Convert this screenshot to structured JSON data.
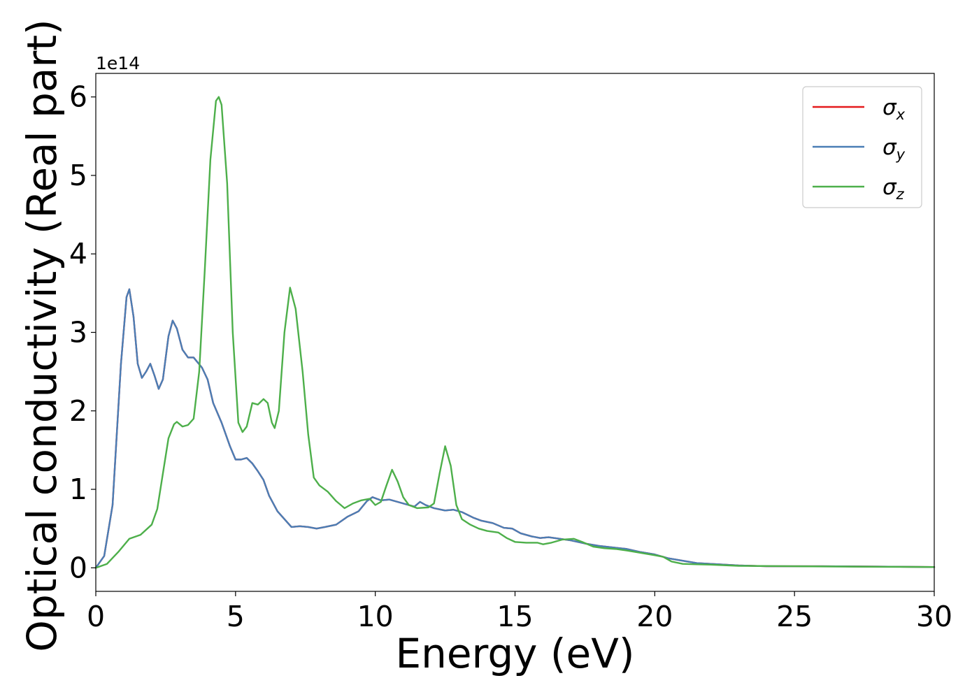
{
  "chart_data": {
    "type": "line",
    "title": "",
    "xlabel": "Energy (eV)",
    "ylabel": "Optical conductivity (Real part)",
    "y_offset_text": "1e14",
    "xlim": [
      0,
      30
    ],
    "ylim": [
      -0.3,
      6.3
    ],
    "x_ticks": [
      0,
      5,
      10,
      15,
      20,
      25,
      30
    ],
    "x_tick_labels": [
      "0",
      "5",
      "10",
      "15",
      "20",
      "25",
      "30"
    ],
    "y_ticks": [
      0,
      1,
      2,
      3,
      4,
      5,
      6
    ],
    "y_tick_labels": [
      "0",
      "1",
      "2",
      "3",
      "4",
      "5",
      "6"
    ],
    "grid": false,
    "legend_position": "top-right",
    "series": [
      {
        "name": "σx",
        "legend_symbol": "σ",
        "legend_subscript": "x",
        "color": "#e41a1c",
        "points": [
          [
            0,
            0
          ],
          [
            0.3,
            0.15
          ],
          [
            0.6,
            0.8
          ],
          [
            0.9,
            2.6
          ],
          [
            1.1,
            3.45
          ],
          [
            1.2,
            3.55
          ],
          [
            1.35,
            3.2
          ],
          [
            1.5,
            2.6
          ],
          [
            1.65,
            2.42
          ],
          [
            1.8,
            2.5
          ],
          [
            1.95,
            2.6
          ],
          [
            2.1,
            2.45
          ],
          [
            2.25,
            2.28
          ],
          [
            2.4,
            2.4
          ],
          [
            2.6,
            2.95
          ],
          [
            2.75,
            3.15
          ],
          [
            2.9,
            3.05
          ],
          [
            3.1,
            2.78
          ],
          [
            3.3,
            2.68
          ],
          [
            3.5,
            2.68
          ],
          [
            3.8,
            2.55
          ],
          [
            4.0,
            2.4
          ],
          [
            4.2,
            2.1
          ],
          [
            4.5,
            1.85
          ],
          [
            4.8,
            1.55
          ],
          [
            5.0,
            1.38
          ],
          [
            5.2,
            1.38
          ],
          [
            5.4,
            1.4
          ],
          [
            5.6,
            1.33
          ],
          [
            5.8,
            1.23
          ],
          [
            6.0,
            1.12
          ],
          [
            6.2,
            0.92
          ],
          [
            6.5,
            0.72
          ],
          [
            6.8,
            0.6
          ],
          [
            7.0,
            0.52
          ],
          [
            7.3,
            0.53
          ],
          [
            7.6,
            0.52
          ],
          [
            7.9,
            0.5
          ],
          [
            8.2,
            0.52
          ],
          [
            8.6,
            0.55
          ],
          [
            9.0,
            0.65
          ],
          [
            9.4,
            0.72
          ],
          [
            9.7,
            0.85
          ],
          [
            9.9,
            0.9
          ],
          [
            10.2,
            0.86
          ],
          [
            10.5,
            0.87
          ],
          [
            10.8,
            0.84
          ],
          [
            11.2,
            0.8
          ],
          [
            11.4,
            0.78
          ],
          [
            11.6,
            0.84
          ],
          [
            11.8,
            0.8
          ],
          [
            12.1,
            0.76
          ],
          [
            12.5,
            0.73
          ],
          [
            12.8,
            0.74
          ],
          [
            13.1,
            0.71
          ],
          [
            13.5,
            0.64
          ],
          [
            13.8,
            0.6
          ],
          [
            14.2,
            0.57
          ],
          [
            14.6,
            0.51
          ],
          [
            14.9,
            0.5
          ],
          [
            15.2,
            0.44
          ],
          [
            15.6,
            0.4
          ],
          [
            15.9,
            0.38
          ],
          [
            16.2,
            0.39
          ],
          [
            16.6,
            0.37
          ],
          [
            17.0,
            0.35
          ],
          [
            17.5,
            0.31
          ],
          [
            18.0,
            0.28
          ],
          [
            18.5,
            0.26
          ],
          [
            19.0,
            0.24
          ],
          [
            19.5,
            0.2
          ],
          [
            20.0,
            0.17
          ],
          [
            20.5,
            0.12
          ],
          [
            21.0,
            0.09
          ],
          [
            21.5,
            0.06
          ],
          [
            22.0,
            0.05
          ],
          [
            22.5,
            0.04
          ],
          [
            23.0,
            0.03
          ],
          [
            24.0,
            0.02
          ],
          [
            26.0,
            0.02
          ],
          [
            28.0,
            0.015
          ],
          [
            30.0,
            0.01
          ]
        ]
      },
      {
        "name": "σy",
        "legend_symbol": "σ",
        "legend_subscript": "y",
        "color": "#4a7eb5",
        "points": [
          [
            0,
            0
          ],
          [
            0.3,
            0.15
          ],
          [
            0.6,
            0.8
          ],
          [
            0.9,
            2.6
          ],
          [
            1.1,
            3.45
          ],
          [
            1.2,
            3.55
          ],
          [
            1.35,
            3.2
          ],
          [
            1.5,
            2.6
          ],
          [
            1.65,
            2.42
          ],
          [
            1.8,
            2.5
          ],
          [
            1.95,
            2.6
          ],
          [
            2.1,
            2.45
          ],
          [
            2.25,
            2.28
          ],
          [
            2.4,
            2.4
          ],
          [
            2.6,
            2.95
          ],
          [
            2.75,
            3.15
          ],
          [
            2.9,
            3.05
          ],
          [
            3.1,
            2.78
          ],
          [
            3.3,
            2.68
          ],
          [
            3.5,
            2.68
          ],
          [
            3.8,
            2.55
          ],
          [
            4.0,
            2.4
          ],
          [
            4.2,
            2.1
          ],
          [
            4.5,
            1.85
          ],
          [
            4.8,
            1.55
          ],
          [
            5.0,
            1.38
          ],
          [
            5.2,
            1.38
          ],
          [
            5.4,
            1.4
          ],
          [
            5.6,
            1.33
          ],
          [
            5.8,
            1.23
          ],
          [
            6.0,
            1.12
          ],
          [
            6.2,
            0.92
          ],
          [
            6.5,
            0.72
          ],
          [
            6.8,
            0.6
          ],
          [
            7.0,
            0.52
          ],
          [
            7.3,
            0.53
          ],
          [
            7.6,
            0.52
          ],
          [
            7.9,
            0.5
          ],
          [
            8.2,
            0.52
          ],
          [
            8.6,
            0.55
          ],
          [
            9.0,
            0.65
          ],
          [
            9.4,
            0.72
          ],
          [
            9.7,
            0.85
          ],
          [
            9.9,
            0.9
          ],
          [
            10.2,
            0.86
          ],
          [
            10.5,
            0.87
          ],
          [
            10.8,
            0.84
          ],
          [
            11.2,
            0.8
          ],
          [
            11.4,
            0.78
          ],
          [
            11.6,
            0.84
          ],
          [
            11.8,
            0.8
          ],
          [
            12.1,
            0.76
          ],
          [
            12.5,
            0.73
          ],
          [
            12.8,
            0.74
          ],
          [
            13.1,
            0.71
          ],
          [
            13.5,
            0.64
          ],
          [
            13.8,
            0.6
          ],
          [
            14.2,
            0.57
          ],
          [
            14.6,
            0.51
          ],
          [
            14.9,
            0.5
          ],
          [
            15.2,
            0.44
          ],
          [
            15.6,
            0.4
          ],
          [
            15.9,
            0.38
          ],
          [
            16.2,
            0.39
          ],
          [
            16.6,
            0.37
          ],
          [
            17.0,
            0.35
          ],
          [
            17.5,
            0.31
          ],
          [
            18.0,
            0.28
          ],
          [
            18.5,
            0.26
          ],
          [
            19.0,
            0.24
          ],
          [
            19.5,
            0.2
          ],
          [
            20.0,
            0.17
          ],
          [
            20.5,
            0.12
          ],
          [
            21.0,
            0.09
          ],
          [
            21.5,
            0.06
          ],
          [
            22.0,
            0.05
          ],
          [
            22.5,
            0.04
          ],
          [
            23.0,
            0.03
          ],
          [
            24.0,
            0.02
          ],
          [
            26.0,
            0.02
          ],
          [
            28.0,
            0.015
          ],
          [
            30.0,
            0.01
          ]
        ]
      },
      {
        "name": "σz",
        "legend_symbol": "σ",
        "legend_subscript": "z",
        "color": "#4daf4a",
        "points": [
          [
            0,
            0
          ],
          [
            0.4,
            0.05
          ],
          [
            0.8,
            0.2
          ],
          [
            1.2,
            0.37
          ],
          [
            1.6,
            0.42
          ],
          [
            2.0,
            0.55
          ],
          [
            2.2,
            0.75
          ],
          [
            2.4,
            1.2
          ],
          [
            2.6,
            1.65
          ],
          [
            2.8,
            1.83
          ],
          [
            2.9,
            1.86
          ],
          [
            3.1,
            1.8
          ],
          [
            3.3,
            1.82
          ],
          [
            3.5,
            1.9
          ],
          [
            3.7,
            2.5
          ],
          [
            3.9,
            3.8
          ],
          [
            4.1,
            5.2
          ],
          [
            4.3,
            5.95
          ],
          [
            4.4,
            6.0
          ],
          [
            4.5,
            5.9
          ],
          [
            4.7,
            4.9
          ],
          [
            4.9,
            3.0
          ],
          [
            5.1,
            1.85
          ],
          [
            5.25,
            1.73
          ],
          [
            5.4,
            1.8
          ],
          [
            5.6,
            2.1
          ],
          [
            5.8,
            2.08
          ],
          [
            6.0,
            2.15
          ],
          [
            6.15,
            2.1
          ],
          [
            6.3,
            1.85
          ],
          [
            6.4,
            1.78
          ],
          [
            6.55,
            2.0
          ],
          [
            6.75,
            3.0
          ],
          [
            6.95,
            3.57
          ],
          [
            7.15,
            3.3
          ],
          [
            7.4,
            2.5
          ],
          [
            7.6,
            1.7
          ],
          [
            7.8,
            1.15
          ],
          [
            8.0,
            1.05
          ],
          [
            8.3,
            0.97
          ],
          [
            8.6,
            0.85
          ],
          [
            8.9,
            0.76
          ],
          [
            9.2,
            0.82
          ],
          [
            9.5,
            0.86
          ],
          [
            9.8,
            0.88
          ],
          [
            10.0,
            0.8
          ],
          [
            10.2,
            0.84
          ],
          [
            10.4,
            1.05
          ],
          [
            10.6,
            1.25
          ],
          [
            10.8,
            1.1
          ],
          [
            11.0,
            0.9
          ],
          [
            11.2,
            0.8
          ],
          [
            11.5,
            0.76
          ],
          [
            11.9,
            0.77
          ],
          [
            12.1,
            0.82
          ],
          [
            12.3,
            1.2
          ],
          [
            12.5,
            1.55
          ],
          [
            12.7,
            1.3
          ],
          [
            12.9,
            0.8
          ],
          [
            13.1,
            0.62
          ],
          [
            13.4,
            0.55
          ],
          [
            13.7,
            0.5
          ],
          [
            14.0,
            0.47
          ],
          [
            14.4,
            0.45
          ],
          [
            14.7,
            0.38
          ],
          [
            15.0,
            0.33
          ],
          [
            15.4,
            0.32
          ],
          [
            15.8,
            0.32
          ],
          [
            16.0,
            0.3
          ],
          [
            16.3,
            0.32
          ],
          [
            16.7,
            0.36
          ],
          [
            17.1,
            0.37
          ],
          [
            17.4,
            0.33
          ],
          [
            17.8,
            0.27
          ],
          [
            18.2,
            0.25
          ],
          [
            18.6,
            0.24
          ],
          [
            19.0,
            0.22
          ],
          [
            19.5,
            0.19
          ],
          [
            20.0,
            0.16
          ],
          [
            20.3,
            0.14
          ],
          [
            20.6,
            0.08
          ],
          [
            21.0,
            0.05
          ],
          [
            21.5,
            0.045
          ],
          [
            22.0,
            0.04
          ],
          [
            23.0,
            0.025
          ],
          [
            25.0,
            0.02
          ],
          [
            27.0,
            0.015
          ],
          [
            30.0,
            0.01
          ]
        ]
      }
    ]
  }
}
